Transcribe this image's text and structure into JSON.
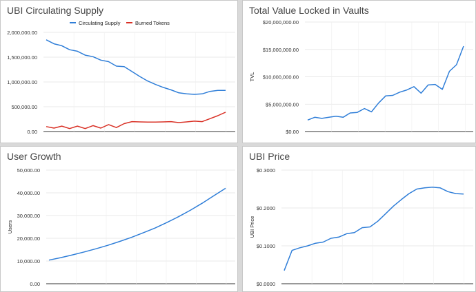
{
  "colors": {
    "blue": "#2f7ed8",
    "red": "#d93025",
    "grid": "#e2e2e2",
    "axis": "#333333"
  },
  "chart_data": [
    {
      "type": "line",
      "title": "UBI Circulating Supply",
      "xlabel": "",
      "ylabel": "",
      "ylim": [
        0,
        2000000
      ],
      "yticks": [
        "0.00",
        "500,000.00",
        "1,000,000.00",
        "1,500,000.00",
        "2,000,000.00"
      ],
      "legend_position": "top",
      "grid": true,
      "series": [
        {
          "name": "Circulating Supply",
          "color": "#2f7ed8",
          "values": [
            1850000,
            1770000,
            1730000,
            1650000,
            1620000,
            1540000,
            1510000,
            1440000,
            1410000,
            1320000,
            1310000,
            1210000,
            1110000,
            1020000,
            950000,
            890000,
            840000,
            780000,
            760000,
            750000,
            760000,
            810000,
            830000,
            830000
          ]
        },
        {
          "name": "Burned Tokens",
          "color": "#d93025",
          "values": [
            100000,
            70000,
            110000,
            60000,
            110000,
            60000,
            120000,
            70000,
            140000,
            80000,
            160000,
            200000,
            195000,
            190000,
            190000,
            195000,
            200000,
            180000,
            195000,
            210000,
            200000,
            260000,
            320000,
            390000
          ]
        }
      ]
    },
    {
      "type": "line",
      "title": "Total Value Locked in Vaults",
      "xlabel": "",
      "ylabel": "TVL",
      "ylim": [
        0,
        20000000
      ],
      "yticks": [
        "$0.00",
        "$5,000,000.00",
        "$10,000,000.00",
        "$15,000,000.00",
        "$20,000,000.00"
      ],
      "grid": true,
      "series": [
        {
          "color": "#2f7ed8",
          "values": [
            2100000,
            2600000,
            2400000,
            2600000,
            2800000,
            2600000,
            3400000,
            3500000,
            4200000,
            3600000,
            5200000,
            6500000,
            6600000,
            7200000,
            7600000,
            8200000,
            7000000,
            8500000,
            8600000,
            7700000,
            11000000,
            12200000,
            15600000
          ]
        }
      ]
    },
    {
      "type": "line",
      "title": "User Growth",
      "xlabel": "",
      "ylabel": "Users",
      "ylim": [
        0,
        50000
      ],
      "yticks": [
        "0.00",
        "10,000.00",
        "20,000.00",
        "30,000.00",
        "40,000.00",
        "50,000.00"
      ],
      "grid": true,
      "series": [
        {
          "color": "#2f7ed8",
          "values": [
            10400,
            11500,
            12700,
            14000,
            15400,
            16900,
            18600,
            20400,
            22400,
            24500,
            26900,
            29500,
            32300,
            35400,
            38700,
            42000
          ]
        }
      ]
    },
    {
      "type": "line",
      "title": "UBI Price",
      "xlabel": "",
      "ylabel": "UBI Price",
      "ylim": [
        0,
        0.3
      ],
      "yticks": [
        "$0.0000",
        "$0.1000",
        "$0.2000",
        "$0.3000"
      ],
      "grid": true,
      "series": [
        {
          "color": "#2f7ed8",
          "values": [
            0.035,
            0.088,
            0.095,
            0.1,
            0.107,
            0.11,
            0.12,
            0.123,
            0.132,
            0.135,
            0.148,
            0.15,
            0.165,
            0.185,
            0.205,
            0.222,
            0.238,
            0.25,
            0.253,
            0.255,
            0.253,
            0.243,
            0.238,
            0.237
          ]
        }
      ]
    }
  ]
}
